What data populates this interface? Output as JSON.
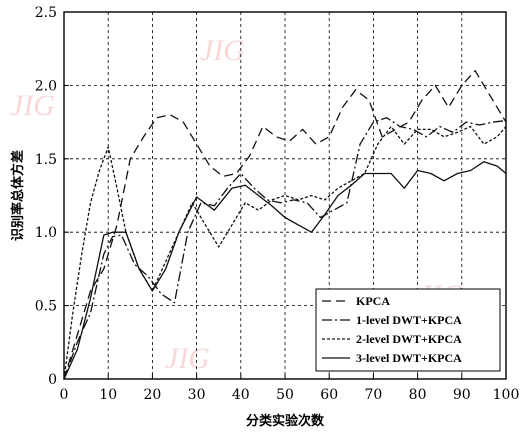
{
  "chart_data": {
    "type": "line",
    "xlabel": "分类实验次数",
    "ylabel": "识别率总体方差",
    "xlim": [
      0,
      100
    ],
    "ylim": [
      0,
      2.5
    ],
    "xticks": [
      0,
      10,
      20,
      30,
      40,
      50,
      60,
      70,
      80,
      90,
      100
    ],
    "yticks": [
      "0",
      "0.5",
      "1.0",
      "1.5",
      "2.0",
      "2.5"
    ],
    "grid": true,
    "legend_position": "bottom-right",
    "watermark": "JIG",
    "series": [
      {
        "name": "KPCA",
        "dash": "long-dash",
        "x": [
          0,
          3,
          6,
          9,
          12,
          15,
          18,
          21,
          24,
          27,
          30,
          33,
          36,
          39,
          42,
          45,
          48,
          51,
          54,
          57,
          60,
          63,
          66,
          69,
          72,
          75,
          78,
          81,
          84,
          87,
          90,
          93,
          96,
          100
        ],
        "y": [
          0.0,
          0.3,
          0.6,
          0.75,
          1.05,
          1.5,
          1.65,
          1.78,
          1.8,
          1.75,
          1.6,
          1.45,
          1.38,
          1.4,
          1.52,
          1.72,
          1.65,
          1.62,
          1.7,
          1.6,
          1.65,
          1.85,
          1.97,
          1.9,
          1.65,
          1.7,
          1.75,
          1.9,
          2.0,
          1.85,
          2.0,
          2.1,
          1.95,
          1.75
        ]
      },
      {
        "name": "1-level DWT+KPCA",
        "dash": "dash-dot",
        "x": [
          0,
          3,
          6,
          9,
          11,
          13,
          16,
          19,
          22,
          25,
          28,
          31,
          34,
          37,
          40,
          43,
          46,
          49,
          52,
          55,
          58,
          61,
          64,
          67,
          70,
          73,
          76,
          79,
          82,
          85,
          88,
          91,
          94,
          97,
          100
        ],
        "y": [
          0.0,
          0.25,
          0.45,
          0.85,
          0.97,
          0.98,
          0.78,
          0.7,
          0.58,
          0.52,
          1.0,
          1.2,
          1.18,
          1.3,
          1.4,
          1.3,
          1.22,
          1.2,
          1.22,
          1.2,
          1.1,
          1.15,
          1.2,
          1.6,
          1.75,
          1.78,
          1.72,
          1.7,
          1.65,
          1.72,
          1.68,
          1.75,
          1.73,
          1.75,
          1.76
        ]
      },
      {
        "name": "2-level DWT+KPCA",
        "dash": "short-dash",
        "x": [
          0,
          2,
          4,
          6,
          8,
          10,
          12,
          14,
          17,
          20,
          23,
          26,
          29,
          32,
          35,
          38,
          41,
          44,
          47,
          50,
          53,
          56,
          59,
          62,
          65,
          68,
          71,
          74,
          77,
          80,
          83,
          86,
          89,
          92,
          95,
          98,
          100
        ],
        "y": [
          0.0,
          0.45,
          0.85,
          1.2,
          1.42,
          1.58,
          1.3,
          1.0,
          0.75,
          0.6,
          0.8,
          1.0,
          1.2,
          1.05,
          0.9,
          1.05,
          1.2,
          1.15,
          1.22,
          1.25,
          1.22,
          1.25,
          1.22,
          1.3,
          1.35,
          1.4,
          1.6,
          1.72,
          1.6,
          1.7,
          1.7,
          1.65,
          1.68,
          1.72,
          1.6,
          1.65,
          1.72
        ]
      },
      {
        "name": "3-level DWT+KPCA",
        "dash": "solid",
        "x": [
          0,
          3,
          6,
          9,
          11,
          14,
          17,
          20,
          23,
          26,
          30,
          34,
          38,
          41,
          44,
          47,
          50,
          53,
          56,
          59,
          62,
          65,
          68,
          71,
          74,
          77,
          80,
          83,
          86,
          89,
          92,
          95,
          98,
          100
        ],
        "y": [
          0.0,
          0.2,
          0.55,
          0.98,
          1.0,
          1.0,
          0.75,
          0.6,
          0.75,
          1.0,
          1.24,
          1.15,
          1.3,
          1.32,
          1.25,
          1.18,
          1.1,
          1.05,
          1.0,
          1.12,
          1.25,
          1.32,
          1.4,
          1.4,
          1.4,
          1.3,
          1.42,
          1.4,
          1.35,
          1.4,
          1.42,
          1.48,
          1.45,
          1.4
        ]
      }
    ]
  }
}
